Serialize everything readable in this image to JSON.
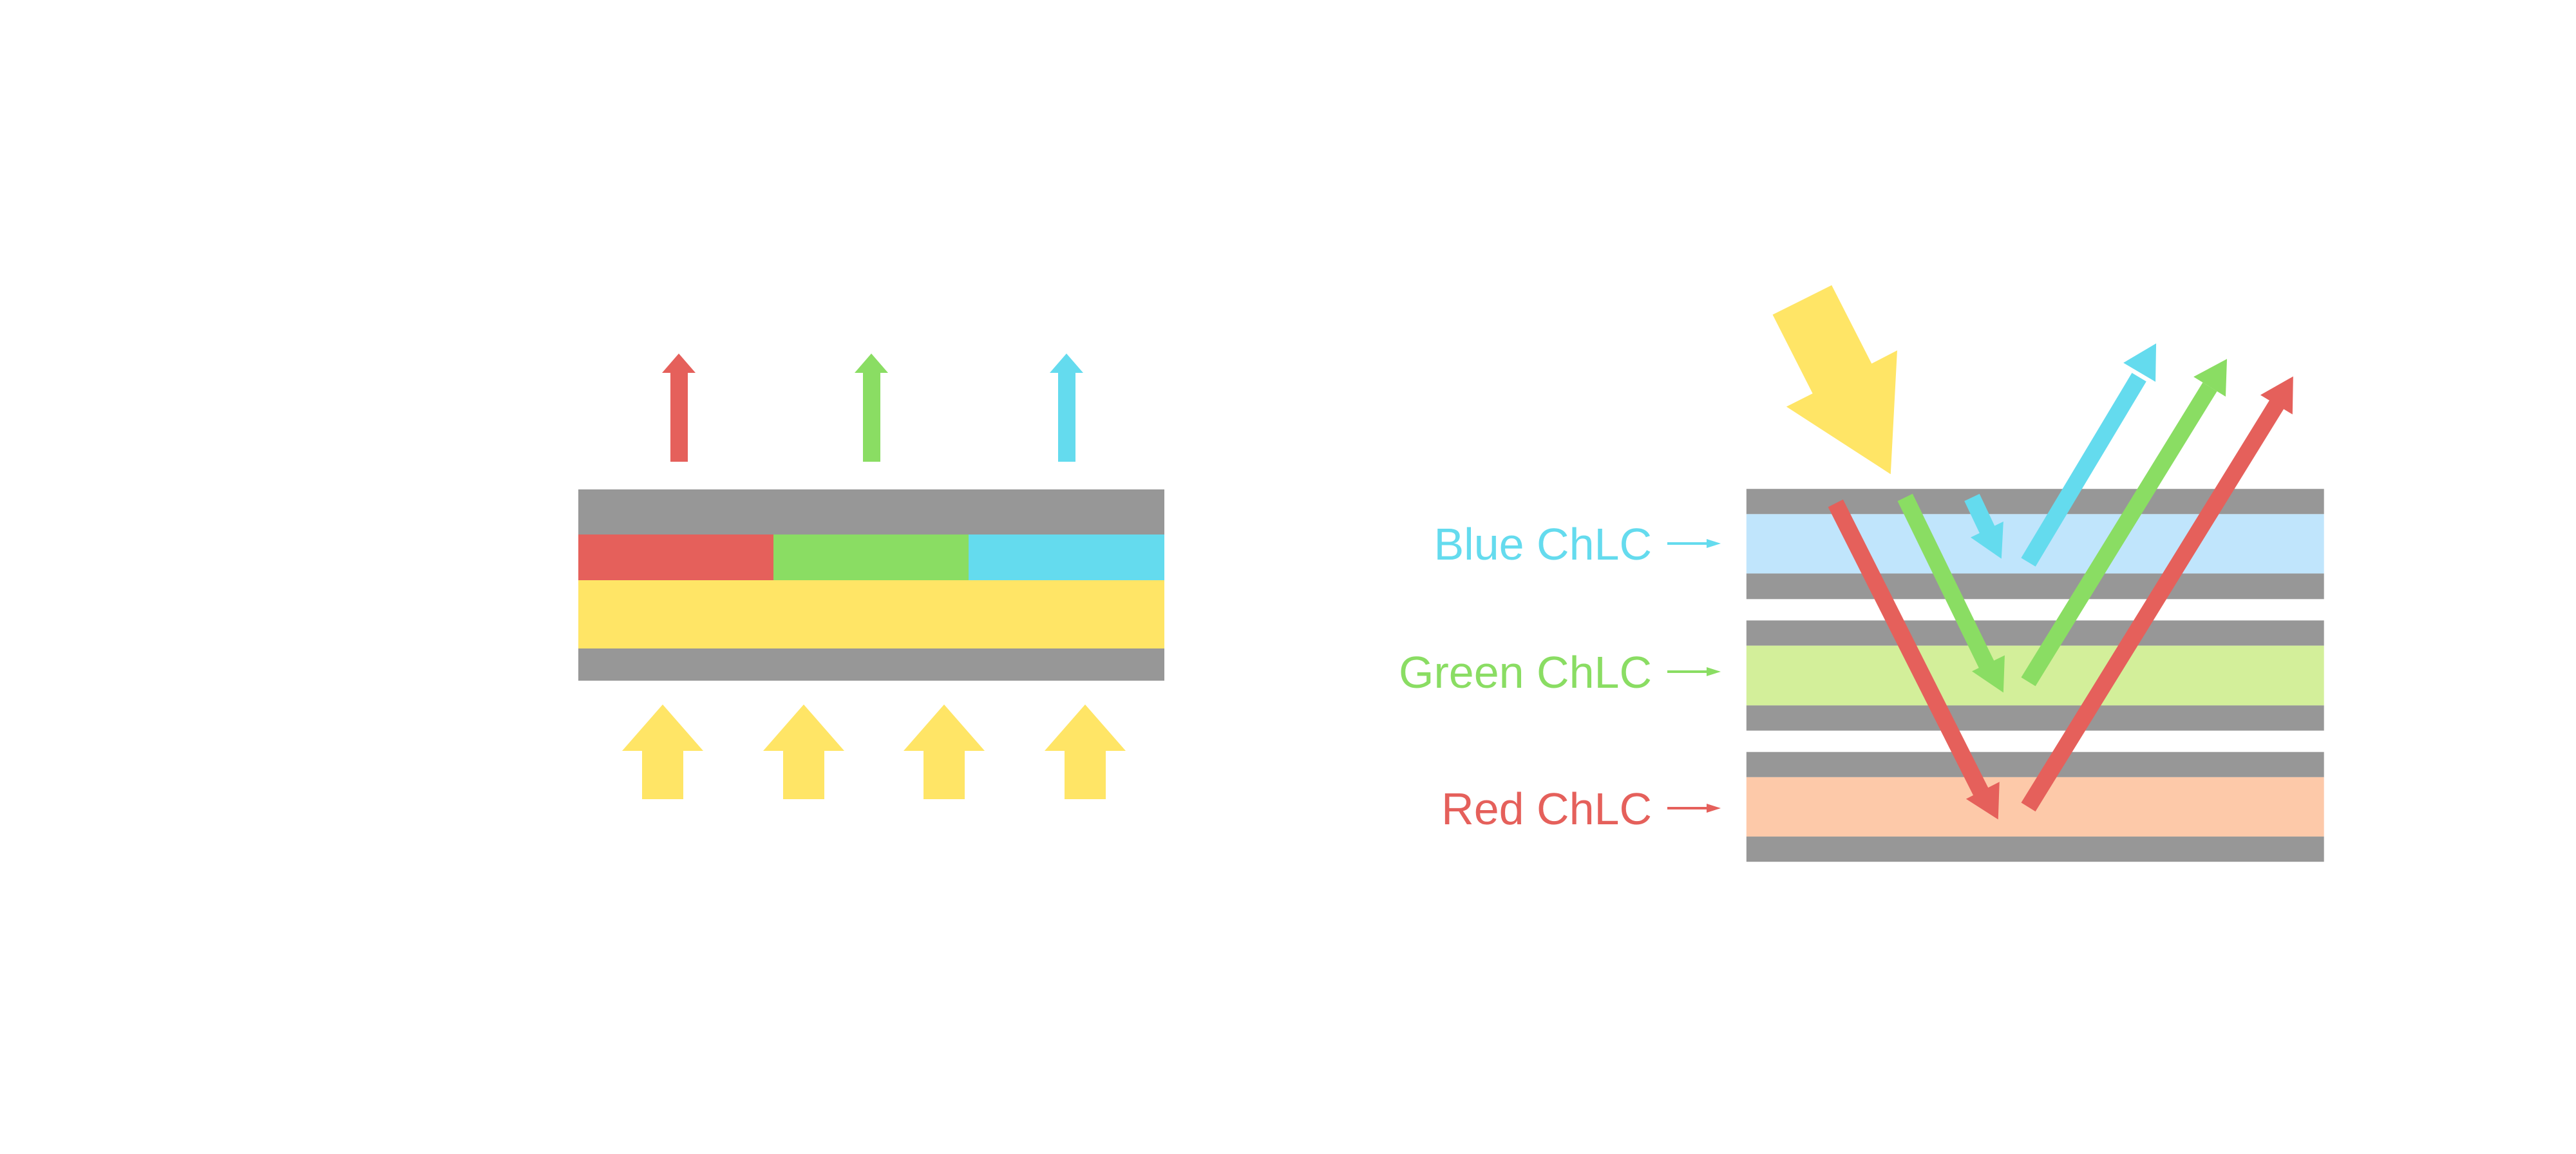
{
  "colors": {
    "red": "#E5605B",
    "green": "#8ADD63",
    "blue": "#64DBEE",
    "yellow": "#FFE566",
    "gray": "#979797",
    "light_blue": "#C0E5FC",
    "light_green": "#D3EF9A",
    "peach": "#FDC9A9"
  },
  "right_panel": {
    "labels": {
      "blue": "Blue ChLC",
      "green": "Green ChLC",
      "red": "Red ChLC"
    }
  }
}
